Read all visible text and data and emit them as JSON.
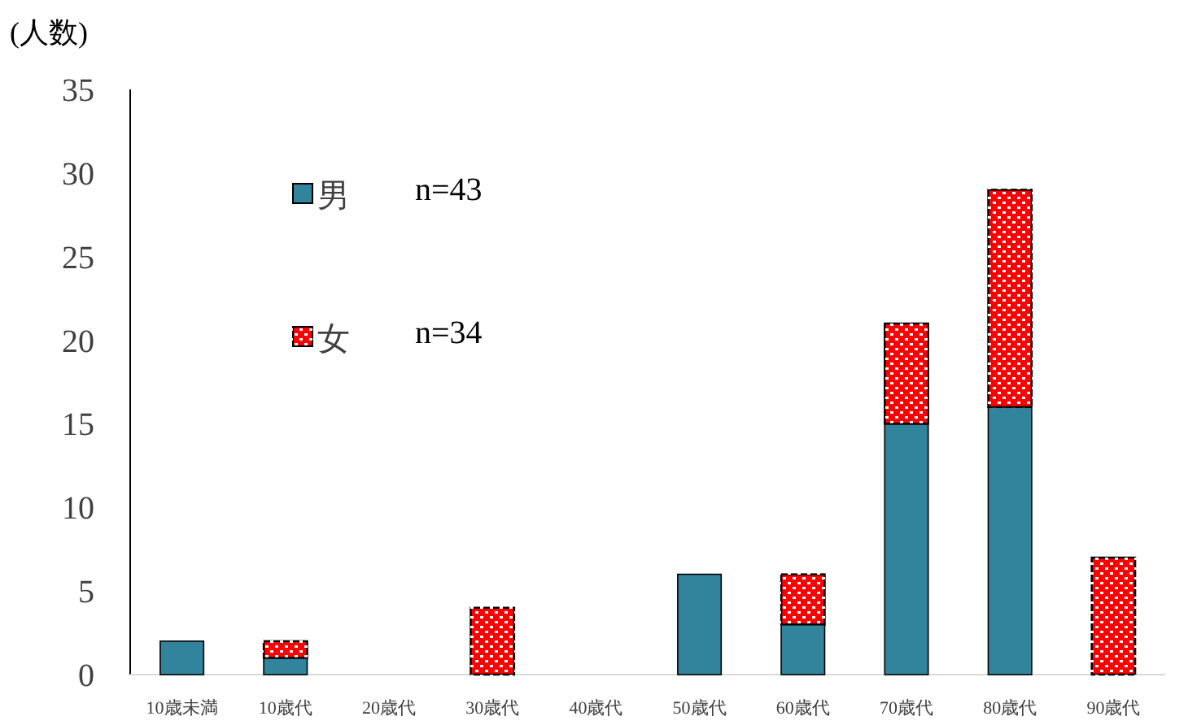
{
  "chart_data": {
    "type": "bar",
    "stacked": true,
    "ylabel": "(人数)",
    "categories": [
      "10歳未満",
      "10歳代",
      "20歳代",
      "30歳代",
      "40歳代",
      "50歳代",
      "60歳代",
      "70歳代",
      "80歳代",
      "90歳代"
    ],
    "series": [
      {
        "name": "男",
        "color": "#31849b",
        "values": [
          2,
          1,
          0,
          0,
          0,
          6,
          3,
          15,
          16,
          0
        ]
      },
      {
        "name": "女",
        "color": "#ff0000",
        "values": [
          0,
          1,
          0,
          4,
          0,
          0,
          3,
          6,
          13,
          7
        ]
      }
    ],
    "annotations": [
      "n=43",
      "n=34"
    ],
    "ylim": [
      0,
      35
    ],
    "yticks": [
      0,
      5,
      10,
      15,
      20,
      25,
      30,
      35
    ],
    "grid": false,
    "legend": "top left"
  }
}
